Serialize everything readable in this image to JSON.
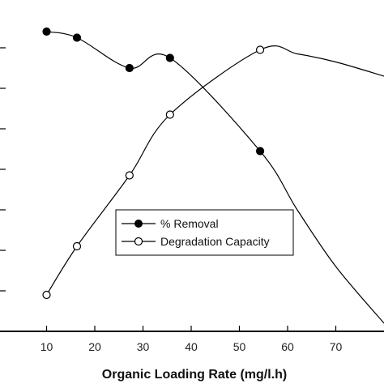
{
  "chart_data": {
    "type": "line",
    "xlabel": "Organic Loading Rate (mg/l.h)",
    "xlim": [
      0,
      80
    ],
    "xticks": [
      10,
      20,
      30,
      40,
      50,
      60,
      70
    ],
    "ylim": [
      0,
      8
    ],
    "grid": false,
    "legend_position": "center",
    "series": [
      {
        "name": "% Removal",
        "marker": "filled-circle",
        "color": "#000000",
        "x": [
          10,
          16.3,
          27.2,
          35.6,
          54.3
        ],
        "y": [
          7.4,
          7.25,
          6.5,
          6.75,
          4.45
        ],
        "curve_extension": [
          [
            62,
            3.0
          ],
          [
            70,
            1.6
          ],
          [
            80,
            0.2
          ]
        ]
      },
      {
        "name": "Degradation Capacity",
        "marker": "open-circle",
        "color": "#000000",
        "x": [
          10,
          16.3,
          27.2,
          35.6,
          54.3
        ],
        "y": [
          0.9,
          2.1,
          3.85,
          5.35,
          6.95
        ],
        "curve_extension": [
          [
            62,
            6.85
          ],
          [
            70,
            6.65
          ],
          [
            80,
            6.3
          ]
        ]
      }
    ]
  }
}
